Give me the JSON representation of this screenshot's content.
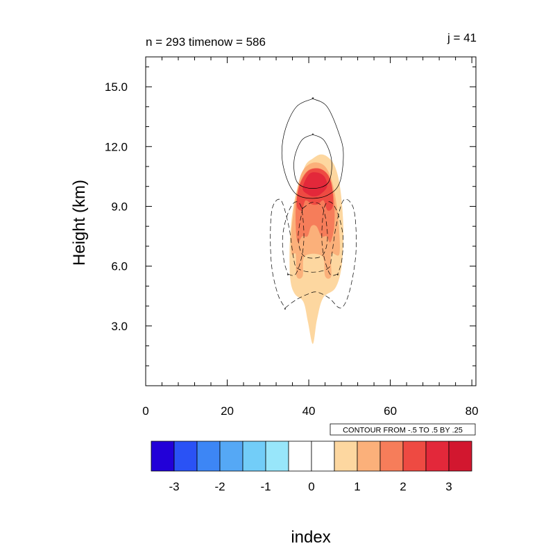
{
  "chart_data": {
    "type": "contour",
    "title_left": "n = 293 timenow = 586",
    "title_right": "j = 41",
    "xlabel": "index",
    "ylabel": "Height (km)",
    "xlim": [
      0,
      81
    ],
    "ylim": [
      0,
      16.5
    ],
    "x_ticks": [
      0,
      20,
      40,
      60,
      80
    ],
    "x_tick_labels": [
      "0",
      "20",
      "40",
      "60",
      "80"
    ],
    "y_ticks": [
      3,
      6,
      9,
      12,
      15
    ],
    "y_tick_labels": [
      "3.0",
      "6.0",
      "9.0",
      "12.0",
      "15.0"
    ],
    "contour_info": "CONTOUR FROM -.5 TO .5 BY .25",
    "colorbar": {
      "levels": [
        -3,
        -2.5,
        -2,
        -1.5,
        -1,
        -0.5,
        0,
        0.5,
        1,
        1.5,
        2,
        2.5,
        3
      ],
      "tick_values": [
        -3,
        -2,
        -1,
        0,
        1,
        2,
        3
      ],
      "tick_labels": [
        "-3",
        "-2",
        "-1",
        "0",
        "1",
        "2",
        "3"
      ],
      "colors": [
        "#2200d8",
        "#2a52f5",
        "#3d86f5",
        "#55a8f5",
        "#72cdf8",
        "#98e6fa",
        "#ffffff",
        "#ffffff",
        "#fdd7a0",
        "#fbb07a",
        "#f67d5a",
        "#ee4a42",
        "#e3283a",
        "#d2172f"
      ]
    },
    "filled_regions": [
      {
        "level": 1,
        "color": "#fdd7a0",
        "polygon": [
          [
            41,
            2.1
          ],
          [
            42,
            3.3
          ],
          [
            43.5,
            4.4
          ],
          [
            46.5,
            4.9
          ],
          [
            48,
            5.9
          ],
          [
            48.5,
            7.5
          ],
          [
            48.2,
            9
          ],
          [
            47.4,
            10.3
          ],
          [
            46.2,
            11.1
          ],
          [
            44.5,
            11.5
          ],
          [
            42.8,
            11.6
          ],
          [
            41,
            11.4
          ],
          [
            39.3,
            11.1
          ],
          [
            37.8,
            10.3
          ],
          [
            36.6,
            9.4
          ],
          [
            35.7,
            8.2
          ],
          [
            35.3,
            6.8
          ],
          [
            35.5,
            5.3
          ],
          [
            36.6,
            4.6
          ],
          [
            38.7,
            4.2
          ],
          [
            39.8,
            3.2
          ]
        ]
      },
      {
        "level": 1.5,
        "color": "#fbb07a",
        "polygon": [
          [
            35.8,
            6.6
          ],
          [
            35.7,
            7.6
          ],
          [
            36.3,
            8.8
          ],
          [
            37.2,
            9.9
          ],
          [
            38.3,
            10.7
          ],
          [
            40,
            11.1
          ],
          [
            42,
            11.2
          ],
          [
            44,
            11
          ],
          [
            45.5,
            10.4
          ],
          [
            46.6,
            9.4
          ],
          [
            47.4,
            8
          ],
          [
            47.5,
            6.6
          ],
          [
            45.5,
            6.6
          ],
          [
            45.5,
            5.5
          ],
          [
            44,
            5.5
          ],
          [
            43.3,
            6.5
          ],
          [
            39,
            6.5
          ],
          [
            38.5,
            5.5
          ],
          [
            37,
            5.5
          ],
          [
            36.8,
            6.6
          ]
        ]
      },
      {
        "level": 2,
        "color": "#f67d5a",
        "polygon": [
          [
            37.3,
            7.2
          ],
          [
            38.4,
            7.5
          ],
          [
            39.7,
            7.5
          ],
          [
            40.6,
            8
          ],
          [
            41.9,
            8
          ],
          [
            43.1,
            7.5
          ],
          [
            44.4,
            7.5
          ],
          [
            45.3,
            7.2
          ],
          [
            46.2,
            7.9
          ],
          [
            46.3,
            9
          ],
          [
            45.8,
            9.9
          ],
          [
            44.7,
            10.6
          ],
          [
            42.5,
            10.9
          ],
          [
            39.8,
            10.8
          ],
          [
            37.9,
            10.2
          ],
          [
            36.9,
            9.2
          ],
          [
            36.8,
            8
          ]
        ]
      },
      {
        "level": 2.5,
        "color": "#ee4a42",
        "polygon": [
          [
            37.1,
            9
          ],
          [
            38.3,
            8.8
          ],
          [
            39.2,
            9.3
          ],
          [
            40.8,
            9.1
          ],
          [
            42.2,
            9.1
          ],
          [
            43.6,
            9.3
          ],
          [
            44.6,
            8.8
          ],
          [
            45.9,
            9
          ],
          [
            45.7,
            10
          ],
          [
            44.6,
            10.6
          ],
          [
            42.5,
            10.9
          ],
          [
            40,
            10.8
          ],
          [
            38.2,
            10.3
          ],
          [
            37.3,
            9.7
          ]
        ]
      },
      {
        "level": 3,
        "color": "#e3283a",
        "polygon": [
          [
            38.5,
            9.9
          ],
          [
            39.8,
            9.6
          ],
          [
            41.2,
            9.5
          ],
          [
            42.8,
            9.6
          ],
          [
            44.5,
            10
          ],
          [
            43.8,
            10.5
          ],
          [
            42,
            10.7
          ],
          [
            40,
            10.6
          ]
        ]
      }
    ],
    "contour_lines": [
      {
        "value": 0.25,
        "style": "solid",
        "points": [
          [
            41,
            14.4
          ],
          [
            44.5,
            14
          ],
          [
            47.5,
            12.6
          ],
          [
            48.5,
            11.6
          ],
          [
            47.6,
            10.2
          ],
          [
            45,
            9.6
          ],
          [
            41,
            9.4
          ],
          [
            37,
            9.6
          ],
          [
            34.6,
            10.4
          ],
          [
            33.4,
            11.6
          ],
          [
            34.3,
            12.9
          ],
          [
            37,
            14
          ],
          [
            41,
            14.4
          ]
        ]
      },
      {
        "value": 0.5,
        "style": "solid",
        "points": [
          [
            41,
            12.6
          ],
          [
            43.8,
            12.3
          ],
          [
            45.6,
            11.3
          ],
          [
            44.8,
            10.2
          ],
          [
            41,
            9.9
          ],
          [
            37.2,
            10.2
          ],
          [
            36.4,
            11.3
          ],
          [
            38.2,
            12.3
          ],
          [
            41,
            12.6
          ]
        ]
      },
      {
        "value": -0.25,
        "style": "dashed",
        "points": [
          [
            34.2,
            3.9
          ],
          [
            36.8,
            4.3
          ],
          [
            39.8,
            4.6
          ],
          [
            42,
            4.7
          ],
          [
            45,
            4.4
          ],
          [
            47.8,
            3.9
          ],
          [
            49.8,
            4.6
          ],
          [
            51.4,
            6.3
          ],
          [
            51.6,
            7.8
          ],
          [
            50.8,
            9
          ],
          [
            48.5,
            9.3
          ],
          [
            46.7,
            8
          ],
          [
            45.6,
            6.5
          ],
          [
            44.8,
            5.9
          ],
          [
            41,
            5.7
          ],
          [
            37.2,
            5.9
          ],
          [
            36.2,
            6.5
          ],
          [
            35.1,
            8
          ],
          [
            33.2,
            9.3
          ],
          [
            31.2,
            9
          ],
          [
            30.6,
            7.8
          ],
          [
            30.9,
            6
          ],
          [
            32.4,
            4.6
          ],
          [
            34.2,
            3.9
          ]
        ]
      },
      {
        "value": -0.5,
        "style": "dashed",
        "points": [
          [
            34.9,
            5.6
          ],
          [
            36.8,
            5.6
          ],
          [
            38.4,
            6.6
          ],
          [
            38.8,
            7.7
          ],
          [
            38.1,
            9
          ],
          [
            36.5,
            9.2
          ],
          [
            34.8,
            8.6
          ],
          [
            33.6,
            7.5
          ],
          [
            33.9,
            6.3
          ],
          [
            34.9,
            5.6
          ]
        ]
      },
      {
        "value": -0.5,
        "style": "dashed",
        "points": [
          [
            47.1,
            5.6
          ],
          [
            45.2,
            5.6
          ],
          [
            43.6,
            6.6
          ],
          [
            43.2,
            7.7
          ],
          [
            43.9,
            9
          ],
          [
            45.5,
            9.2
          ],
          [
            47.2,
            8.6
          ],
          [
            48.4,
            7.5
          ],
          [
            48.1,
            6.3
          ],
          [
            47.1,
            5.6
          ]
        ]
      },
      {
        "value": -0.5,
        "style": "dashed",
        "points": [
          [
            38.5,
            8.9
          ],
          [
            41,
            9.2
          ],
          [
            43.5,
            8.9
          ],
          [
            44.6,
            7.5
          ],
          [
            43.6,
            6.6
          ],
          [
            41,
            6.4
          ],
          [
            38.4,
            6.6
          ],
          [
            37.4,
            7.5
          ],
          [
            38.5,
            8.9
          ]
        ]
      }
    ]
  }
}
